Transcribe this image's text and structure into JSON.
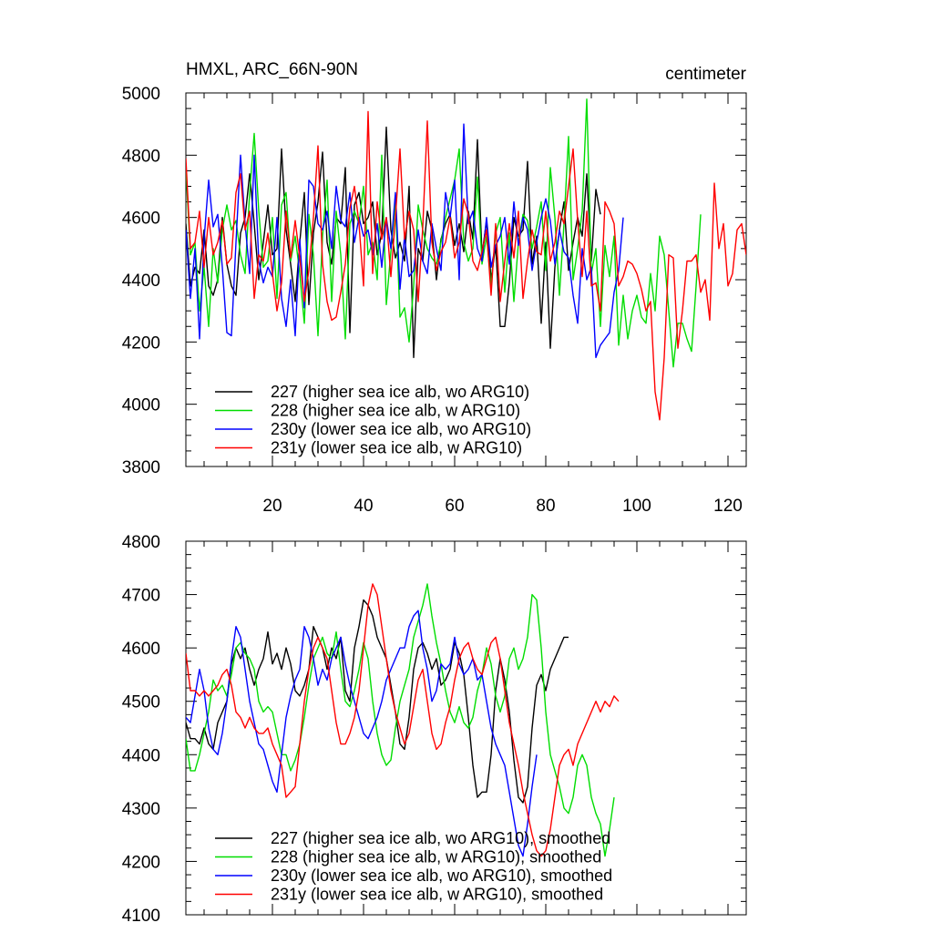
{
  "figure": {
    "title_left": "HMXL, ARC_66N-90N",
    "title_right": "centimeter"
  },
  "chart_data": [
    {
      "type": "line",
      "panel": "top",
      "title": "HMXL, ARC_66N-90N",
      "units": "centimeter",
      "xlim": [
        1,
        124
      ],
      "ylim": [
        3800,
        5000
      ],
      "xticks": [
        20,
        40,
        60,
        80,
        100,
        120
      ],
      "yticks": [
        3800,
        4000,
        4200,
        4400,
        4600,
        4800,
        5000
      ],
      "legend_position": "bottom-left",
      "series": [
        {
          "name": "227 (higher sea ice alb, wo ARG10)",
          "color": "#000000",
          "values": [
            4580,
            4380,
            4440,
            4420,
            4560,
            4380,
            4350,
            4400,
            4600,
            4450,
            4380,
            4350,
            4550,
            4600,
            4740,
            4580,
            4400,
            4520,
            4640,
            4480,
            4500,
            4820,
            4560,
            4450,
            4330,
            4520,
            4680,
            4320,
            4550,
            4650,
            4810,
            4520,
            4450,
            4600,
            4580,
            4760,
            4230,
            4640,
            4680,
            4580,
            4600,
            4650,
            4480,
            4550,
            4890,
            4560,
            4470,
            4520,
            4460,
            4700,
            4150,
            4500,
            4460,
            4620,
            4560,
            4400,
            4530,
            4580,
            4610,
            4510,
            4580,
            4490,
            4620,
            4530,
            4850,
            4480,
            4590,
            4400,
            4510,
            4250,
            4250,
            4390,
            4600,
            4540,
            4560,
            4780,
            4450,
            4540,
            4260,
            4520,
            4180,
            4440,
            4560,
            4650,
            4430,
            4520,
            4600,
            4540,
            4740,
            4460,
            4690,
            4610
          ]
        },
        {
          "name": "228 (higher sea ice alb, w ARG10)",
          "color": "#00dd00",
          "values": [
            4760,
            4480,
            4520,
            4300,
            4440,
            4250,
            4500,
            4390,
            4560,
            4640,
            4560,
            4590,
            4480,
            4420,
            4680,
            4870,
            4620,
            4440,
            4460,
            4600,
            4340,
            4640,
            4680,
            4460,
            4540,
            4420,
            4260,
            4610,
            4480,
            4220,
            4540,
            4720,
            4330,
            4620,
            4480,
            4210,
            4580,
            4620,
            4580,
            4700,
            4480,
            4520,
            4400,
            4800,
            4320,
            4490,
            4650,
            4280,
            4310,
            4200,
            4380,
            4640,
            4560,
            4500,
            4470,
            4450,
            4520,
            4600,
            4660,
            4720,
            4820,
            4520,
            4460,
            4500,
            4730,
            4450,
            4540,
            4380,
            4550,
            4600,
            4360,
            4550,
            4330,
            4520,
            4610,
            4590,
            4500,
            4570,
            4650,
            4430,
            4760,
            4600,
            4350,
            4580,
            4860,
            4400,
            4500,
            4620,
            4980,
            4420,
            4500,
            4250,
            4510,
            4410,
            4540,
            4190,
            4350,
            4210,
            4300,
            4350,
            4280,
            4260,
            4420,
            4300,
            4540,
            4480,
            4300,
            4120,
            4260,
            4260,
            4210,
            4170,
            4380,
            4610
          ]
        },
        {
          "name": "230y (lower sea ice alb, wo ARG10)",
          "color": "#0000ff",
          "values": [
            4560,
            4340,
            4500,
            4210,
            4530,
            4720,
            4570,
            4610,
            4440,
            4230,
            4220,
            4520,
            4800,
            4580,
            4420,
            4800,
            4460,
            4390,
            4440,
            4410,
            4600,
            4340,
            4250,
            4400,
            4220,
            4530,
            4310,
            4720,
            4700,
            4580,
            4560,
            4620,
            4500,
            4700,
            4590,
            4570,
            4680,
            4520,
            4600,
            4540,
            4560,
            4480,
            4580,
            4440,
            4600,
            4500,
            4680,
            4370,
            4540,
            4410,
            4430,
            4560,
            4460,
            4420,
            4580,
            4500,
            4430,
            4680,
            4600,
            4720,
            4400,
            4900,
            4580,
            4620,
            4500,
            4460,
            4600,
            4440,
            4510,
            4540,
            4600,
            4450,
            4650,
            4510,
            4600,
            4560,
            4430,
            4520,
            4600,
            4660,
            4590,
            4450,
            4560,
            4490,
            4470,
            4350,
            4260,
            4500,
            4400,
            4440,
            4150,
            4190,
            4210,
            4230,
            4360,
            4430,
            4600
          ]
        },
        {
          "name": "231y (lower sea ice alb, w ARG10)",
          "color": "#ff0000",
          "values": [
            4790,
            4500,
            4520,
            4620,
            4440,
            4600,
            4480,
            4520,
            4590,
            4450,
            4470,
            4680,
            4740,
            4560,
            4620,
            4340,
            4480,
            4460,
            4550,
            4420,
            4300,
            4390,
            4620,
            4470,
            4590,
            4470,
            4330,
            4430,
            4600,
            4830,
            4450,
            4330,
            4270,
            4280,
            4360,
            4450,
            4630,
            4700,
            4580,
            4380,
            4940,
            4420,
            4650,
            4530,
            4600,
            4410,
            4600,
            4820,
            4530,
            4620,
            4560,
            4330,
            4570,
            4910,
            4520,
            4430,
            4490,
            4520,
            4600,
            4470,
            4520,
            4660,
            4610,
            4460,
            4430,
            4490,
            4560,
            4350,
            4580,
            4330,
            4460,
            4580,
            4470,
            4620,
            4340,
            4460,
            4560,
            4490,
            4480,
            4620,
            4460,
            4520,
            4620,
            4580,
            4700,
            4820,
            4590,
            4410,
            4620,
            4380,
            4390,
            4300,
            4650,
            4620,
            4580,
            4380,
            4410,
            4460,
            4450,
            4420,
            4370,
            4300,
            4330,
            4040,
            3950,
            4150,
            4480,
            4470,
            4180,
            4300,
            4460,
            4460,
            4480,
            4360,
            4400,
            4270,
            4710,
            4500,
            4580,
            4380,
            4420,
            4560,
            4580,
            4480
          ]
        }
      ]
    },
    {
      "type": "line",
      "panel": "bottom",
      "xlim": [
        1,
        124
      ],
      "ylim": [
        4100,
        4800
      ],
      "xticks": [
        20,
        40,
        60,
        80,
        100,
        120
      ],
      "yticks": [
        4100,
        4200,
        4300,
        4400,
        4500,
        4600,
        4700,
        4800
      ],
      "legend_position": "bottom-left",
      "series": [
        {
          "name": "227 (higher sea ice alb, wo ARG10), smoothed",
          "color": "#000000",
          "values": [
            4460,
            4430,
            4430,
            4420,
            4450,
            4420,
            4410,
            4460,
            4480,
            4500,
            4570,
            4600,
            4580,
            4600,
            4560,
            4530,
            4560,
            4580,
            4630,
            4570,
            4590,
            4560,
            4600,
            4570,
            4520,
            4510,
            4530,
            4560,
            4640,
            4620,
            4600,
            4560,
            4600,
            4580,
            4620,
            4520,
            4500,
            4600,
            4640,
            4690,
            4680,
            4660,
            4620,
            4600,
            4580,
            4530,
            4480,
            4420,
            4410,
            4470,
            4560,
            4600,
            4610,
            4590,
            4560,
            4580,
            4530,
            4540,
            4560,
            4610,
            4590,
            4550,
            4470,
            4380,
            4320,
            4330,
            4330,
            4400,
            4520,
            4580,
            4540,
            4480,
            4390,
            4320,
            4310,
            4340,
            4450,
            4530,
            4550,
            4520,
            4560,
            4580,
            4600,
            4620,
            4620
          ]
        },
        {
          "name": "228 (higher sea ice alb, w ARG10), smoothed",
          "color": "#00dd00",
          "values": [
            4430,
            4370,
            4370,
            4400,
            4440,
            4480,
            4540,
            4520,
            4530,
            4510,
            4550,
            4600,
            4610,
            4590,
            4580,
            4560,
            4500,
            4480,
            4490,
            4480,
            4440,
            4400,
            4400,
            4370,
            4390,
            4420,
            4470,
            4530,
            4580,
            4600,
            4620,
            4590,
            4580,
            4630,
            4560,
            4500,
            4490,
            4520,
            4560,
            4610,
            4580,
            4500,
            4440,
            4400,
            4380,
            4390,
            4450,
            4500,
            4530,
            4560,
            4620,
            4650,
            4680,
            4720,
            4660,
            4610,
            4570,
            4520,
            4480,
            4460,
            4490,
            4460,
            4450,
            4470,
            4520,
            4550,
            4600,
            4570,
            4510,
            4480,
            4510,
            4580,
            4600,
            4560,
            4580,
            4620,
            4700,
            4690,
            4600,
            4480,
            4400,
            4370,
            4340,
            4300,
            4290,
            4320,
            4380,
            4400,
            4380,
            4320,
            4290,
            4270,
            4210,
            4260,
            4320
          ]
        },
        {
          "name": "230y (lower sea ice alb, wo ARG10), smoothed",
          "color": "#0000ff",
          "values": [
            4470,
            4460,
            4510,
            4560,
            4520,
            4450,
            4410,
            4400,
            4440,
            4500,
            4580,
            4640,
            4620,
            4560,
            4500,
            4460,
            4420,
            4410,
            4380,
            4350,
            4330,
            4400,
            4470,
            4510,
            4540,
            4560,
            4640,
            4620,
            4580,
            4530,
            4560,
            4540,
            4580,
            4600,
            4620,
            4570,
            4530,
            4500,
            4470,
            4440,
            4430,
            4450,
            4470,
            4500,
            4540,
            4560,
            4580,
            4600,
            4600,
            4640,
            4660,
            4670,
            4600,
            4560,
            4500,
            4520,
            4570,
            4560,
            4570,
            4620,
            4570,
            4550,
            4560,
            4580,
            4540,
            4550,
            4500,
            4450,
            4420,
            4400,
            4380,
            4330,
            4280,
            4230,
            4210,
            4270,
            4340,
            4400
          ]
        },
        {
          "name": "231y (lower sea ice alb, w ARG10), smoothed",
          "color": "#ff0000",
          "values": [
            4590,
            4520,
            4520,
            4510,
            4520,
            4510,
            4520,
            4530,
            4550,
            4560,
            4530,
            4480,
            4470,
            4450,
            4470,
            4450,
            4440,
            4440,
            4450,
            4420,
            4400,
            4380,
            4320,
            4330,
            4340,
            4420,
            4500,
            4560,
            4600,
            4620,
            4600,
            4580,
            4520,
            4460,
            4420,
            4420,
            4440,
            4470,
            4520,
            4600,
            4680,
            4720,
            4700,
            4640,
            4580,
            4520,
            4480,
            4450,
            4420,
            4440,
            4490,
            4540,
            4560,
            4500,
            4440,
            4410,
            4420,
            4460,
            4490,
            4540,
            4580,
            4600,
            4610,
            4580,
            4560,
            4550,
            4580,
            4610,
            4620,
            4580,
            4520,
            4460,
            4420,
            4380,
            4330,
            4290,
            4250,
            4220,
            4210,
            4220,
            4260,
            4320,
            4380,
            4400,
            4410,
            4380,
            4420,
            4440,
            4460,
            4480,
            4500,
            4480,
            4500,
            4490,
            4510,
            4500
          ]
        }
      ]
    }
  ]
}
